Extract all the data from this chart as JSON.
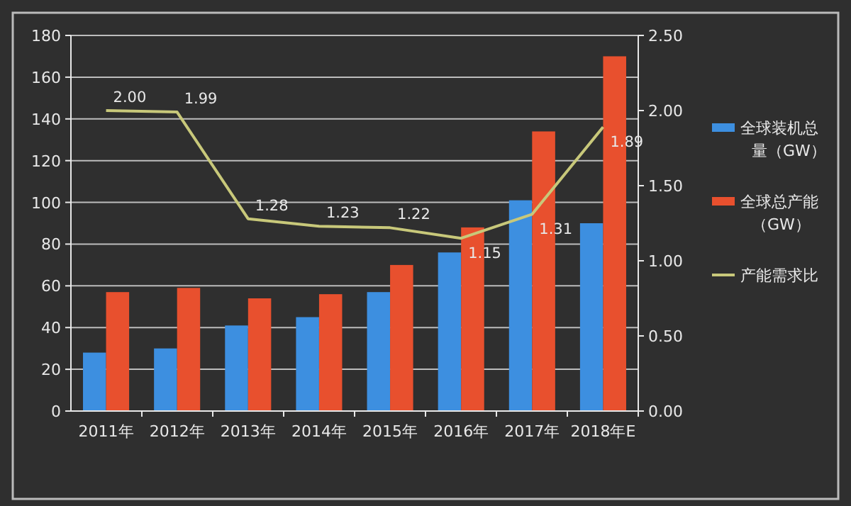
{
  "chart_data": {
    "type": "bar",
    "categories": [
      "2011年",
      "2012年",
      "2013年",
      "2014年",
      "2015年",
      "2016年",
      "2017年",
      "2018年E"
    ],
    "series": [
      {
        "name": "全球装机总量（GW）",
        "color": "#3d8fe0",
        "values": [
          28,
          30,
          41,
          45,
          57,
          76,
          101,
          90
        ]
      },
      {
        "name": "全球总产能（GW）",
        "color": "#e8502e",
        "values": [
          57,
          59,
          54,
          56,
          70,
          88,
          134,
          170
        ]
      },
      {
        "name": "产能需求比",
        "type": "line",
        "axis": "y2",
        "color": "#c8c87a",
        "values": [
          2.0,
          1.99,
          1.28,
          1.23,
          1.22,
          1.15,
          1.31,
          1.89
        ],
        "value_labels": [
          "2.00",
          "1.99",
          "1.28",
          "1.23",
          "1.22",
          "1.15",
          "1.31",
          "1.89"
        ]
      }
    ],
    "ylim": [
      0,
      180
    ],
    "yticks": [
      0,
      20,
      40,
      60,
      80,
      100,
      120,
      140,
      160,
      180
    ],
    "y2lim": [
      0,
      2.5
    ],
    "y2ticks": [
      {
        "value": 0,
        "label": "0.00"
      },
      {
        "value": 0.5,
        "label": "0.50"
      },
      {
        "value": 1,
        "label": "1.00"
      },
      {
        "value": 1.5,
        "label": "1.50"
      },
      {
        "value": 2,
        "label": "2.00"
      },
      {
        "value": 2.5,
        "label": "2.50"
      }
    ],
    "grid": "y",
    "legend": "right",
    "marker": "none"
  }
}
